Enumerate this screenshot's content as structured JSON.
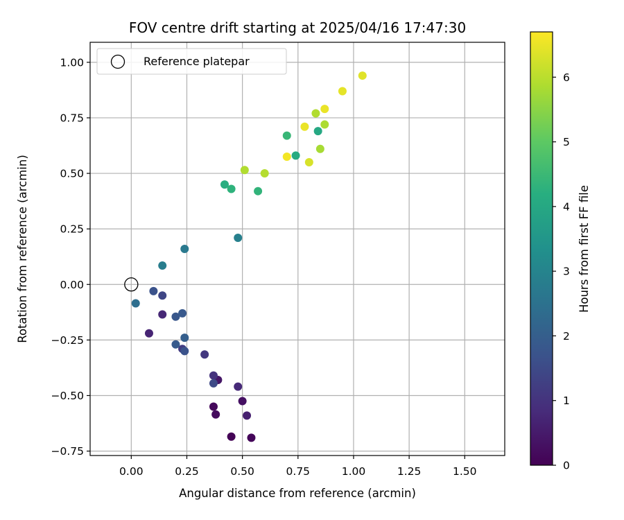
{
  "chart_data": {
    "type": "scatter",
    "title": "FOV centre drift starting at 2025/04/16 17:47:30",
    "xlabel": "Angular distance from reference (arcmin)",
    "ylabel": "Rotation from reference (arcmin)",
    "xlim": [
      -0.185,
      1.68
    ],
    "ylim": [
      -0.77,
      1.09
    ],
    "xticks": [
      0.0,
      0.25,
      0.5,
      0.75,
      1.0,
      1.25,
      1.5
    ],
    "xtick_labels": [
      "0.00",
      "0.25",
      "0.50",
      "0.75",
      "1.00",
      "1.25",
      "1.50"
    ],
    "yticks": [
      -0.75,
      -0.5,
      -0.25,
      0.0,
      0.25,
      0.5,
      0.75,
      1.0
    ],
    "ytick_labels": [
      "−0.75",
      "−0.50",
      "−0.25",
      "0.00",
      "0.25",
      "0.50",
      "0.75",
      "1.00"
    ],
    "grid": true,
    "legend": {
      "position": "top-left",
      "entries": [
        "Reference platepar"
      ]
    },
    "reference_point": {
      "x": 0.0,
      "y": 0.0
    },
    "colorbar": {
      "label": "Hours from first FF file",
      "range": [
        0,
        6.7
      ],
      "ticks": [
        0,
        1,
        2,
        3,
        4,
        5,
        6
      ],
      "tick_labels": [
        "0",
        "1",
        "2",
        "3",
        "4",
        "5",
        "6"
      ],
      "colormap": "viridis"
    },
    "points": [
      {
        "x": 0.45,
        "y": -0.685,
        "t": 0.05
      },
      {
        "x": 0.54,
        "y": -0.69,
        "t": 0.1
      },
      {
        "x": 0.37,
        "y": -0.55,
        "t": 0.15
      },
      {
        "x": 0.38,
        "y": -0.585,
        "t": 0.2
      },
      {
        "x": 0.5,
        "y": -0.525,
        "t": 0.3
      },
      {
        "x": 0.39,
        "y": -0.43,
        "t": 0.4
      },
      {
        "x": 0.52,
        "y": -0.59,
        "t": 0.6
      },
      {
        "x": 0.48,
        "y": -0.46,
        "t": 0.8
      },
      {
        "x": 0.08,
        "y": -0.22,
        "t": 0.7
      },
      {
        "x": 0.14,
        "y": -0.135,
        "t": 0.75
      },
      {
        "x": 0.37,
        "y": -0.41,
        "t": 1.0
      },
      {
        "x": 0.33,
        "y": -0.315,
        "t": 1.1
      },
      {
        "x": 0.23,
        "y": -0.29,
        "t": 1.2
      },
      {
        "x": 0.14,
        "y": -0.05,
        "t": 1.4
      },
      {
        "x": 0.37,
        "y": -0.445,
        "t": 1.5
      },
      {
        "x": 0.1,
        "y": -0.03,
        "t": 1.7
      },
      {
        "x": 0.24,
        "y": -0.3,
        "t": 1.7
      },
      {
        "x": 0.2,
        "y": -0.145,
        "t": 1.8
      },
      {
        "x": 0.23,
        "y": -0.13,
        "t": 1.85
      },
      {
        "x": 0.2,
        "y": -0.27,
        "t": 1.9
      },
      {
        "x": 0.24,
        "y": -0.24,
        "t": 2.0
      },
      {
        "x": 0.02,
        "y": -0.085,
        "t": 2.4
      },
      {
        "x": 0.24,
        "y": 0.16,
        "t": 2.7
      },
      {
        "x": 0.14,
        "y": 0.085,
        "t": 2.8
      },
      {
        "x": 0.48,
        "y": 0.21,
        "t": 2.9
      },
      {
        "x": 0.42,
        "y": 0.45,
        "t": 4.2
      },
      {
        "x": 0.45,
        "y": 0.43,
        "t": 4.3
      },
      {
        "x": 0.57,
        "y": 0.42,
        "t": 4.35
      },
      {
        "x": 0.74,
        "y": 0.58,
        "t": 4.1
      },
      {
        "x": 0.7,
        "y": 0.67,
        "t": 4.45
      },
      {
        "x": 0.84,
        "y": 0.69,
        "t": 4.0
      },
      {
        "x": 0.51,
        "y": 0.515,
        "t": 5.9
      },
      {
        "x": 0.6,
        "y": 0.5,
        "t": 5.95
      },
      {
        "x": 0.85,
        "y": 0.61,
        "t": 5.8
      },
      {
        "x": 0.83,
        "y": 0.77,
        "t": 5.9
      },
      {
        "x": 0.87,
        "y": 0.72,
        "t": 5.85
      },
      {
        "x": 0.7,
        "y": 0.575,
        "t": 6.6
      },
      {
        "x": 0.8,
        "y": 0.55,
        "t": 6.3
      },
      {
        "x": 0.78,
        "y": 0.71,
        "t": 6.5
      },
      {
        "x": 0.87,
        "y": 0.79,
        "t": 6.5
      },
      {
        "x": 0.95,
        "y": 0.87,
        "t": 6.45
      },
      {
        "x": 1.04,
        "y": 0.94,
        "t": 6.4
      }
    ]
  }
}
